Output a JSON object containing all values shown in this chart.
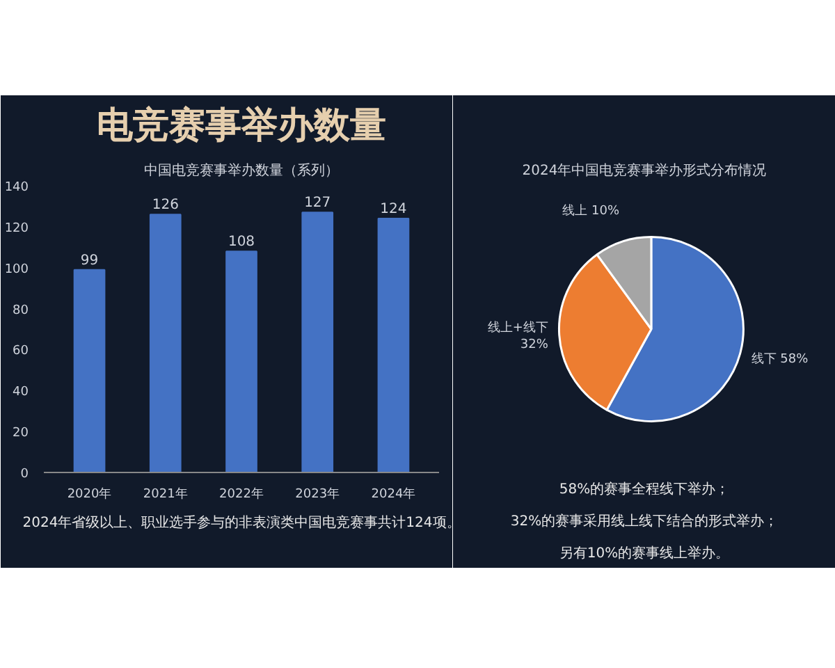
{
  "chart_data": [
    {
      "type": "bar",
      "title": "电竞赛事举办数量",
      "subtitle": "中国电竞赛事举办数量（系列）",
      "categories": [
        "2020年",
        "2021年",
        "2022年",
        "2023年",
        "2024年"
      ],
      "values": [
        99,
        126,
        108,
        127,
        124
      ],
      "color": "#4472c4",
      "ylim": [
        0,
        140
      ],
      "yticks": [
        0,
        20,
        40,
        60,
        80,
        100,
        120,
        140
      ],
      "data_labels": true,
      "grid": false,
      "annotations": [
        "2024年省级以上、职业选手参与的非表演类中国电竞赛事共计124项。"
      ]
    },
    {
      "type": "pie",
      "title": "2024年中国电竞赛事举办形式分布情况",
      "categories": [
        "线下",
        "线上+线下",
        "线上"
      ],
      "values": [
        58,
        32,
        10
      ],
      "colors": [
        "#4472c4",
        "#ed7d31",
        "#a5a5a5"
      ],
      "value_labels": [
        "58%",
        "32%",
        "10%"
      ],
      "annotations": [
        "58%的赛事全程线下举办；",
        "32%的赛事采用线上线下结合的形式举办；",
        "另有10%的赛事线上举办。"
      ]
    }
  ]
}
